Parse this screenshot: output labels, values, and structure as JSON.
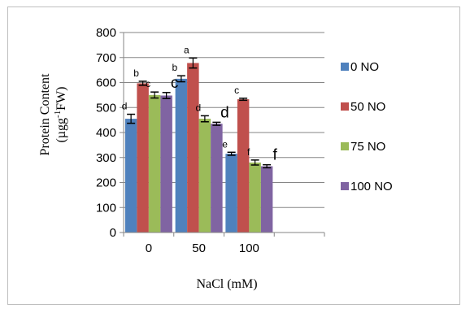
{
  "chart_data": {
    "type": "bar",
    "categories": [
      "0",
      "50",
      "100"
    ],
    "xlabel": "NaCl (mM)",
    "ylabel_line1": "Protein Content",
    "ylabel_line2_main": "(µgg",
    "ylabel_line2_sup": "-1",
    "ylabel_line2_rest": "FW)",
    "ylim": [
      0,
      800
    ],
    "yticks": [
      0,
      100,
      200,
      300,
      400,
      500,
      600,
      700,
      800
    ],
    "grid": true,
    "legend_position": "right",
    "series": [
      {
        "name": "0 NO",
        "color": "#4F81BD",
        "values": [
          455,
          615,
          315
        ],
        "errors": [
          18,
          12,
          6
        ],
        "letters": [
          "d",
          "b",
          "e"
        ],
        "letter_sizes": [
          "small",
          "small",
          "small"
        ]
      },
      {
        "name": "50 NO",
        "color": "#C0504D",
        "values": [
          597,
          678,
          533
        ],
        "errors": [
          8,
          20,
          4
        ],
        "letters": [
          "b",
          "a",
          "c"
        ],
        "letter_sizes": [
          "small",
          "small",
          "small"
        ]
      },
      {
        "name": "75 NO",
        "color": "#9BBB59",
        "values": [
          550,
          455,
          280
        ],
        "errors": [
          12,
          12,
          10
        ],
        "letters": [
          "c",
          "d",
          "f"
        ],
        "letter_sizes": [
          "small",
          "small",
          "small"
        ]
      },
      {
        "name": "100 NO",
        "color": "#8064A2",
        "values": [
          548,
          435,
          265
        ],
        "errors": [
          12,
          6,
          6
        ],
        "letters": [
          "c",
          "d",
          "f"
        ],
        "letter_sizes": [
          "large",
          "large",
          "large"
        ]
      }
    ]
  }
}
